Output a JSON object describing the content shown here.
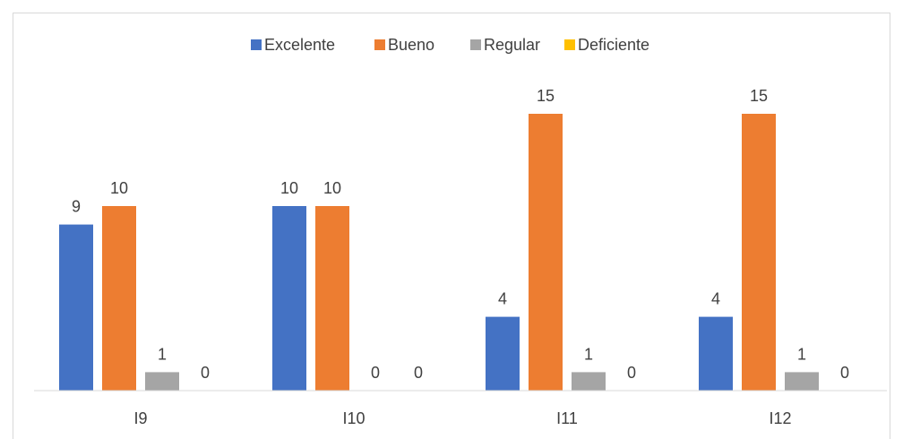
{
  "chart_data": {
    "type": "bar",
    "categories": [
      "I9",
      "I10",
      "I11",
      "I12"
    ],
    "series": [
      {
        "name": "Excelente",
        "color": "#4472C4",
        "values": [
          9,
          10,
          4,
          4
        ]
      },
      {
        "name": "Bueno",
        "color": "#ED7D31",
        "values": [
          10,
          10,
          15,
          15
        ]
      },
      {
        "name": "Regular",
        "color": "#A5A5A5",
        "values": [
          1,
          0,
          1,
          1
        ]
      },
      {
        "name": "Deficiente",
        "color": "#FFC000",
        "values": [
          0,
          0,
          0,
          0
        ]
      }
    ],
    "data_labels": true,
    "legend_position": "top",
    "ylim": [
      0,
      18
    ],
    "grid": false,
    "title": "",
    "xlabel": "",
    "ylabel": ""
  }
}
